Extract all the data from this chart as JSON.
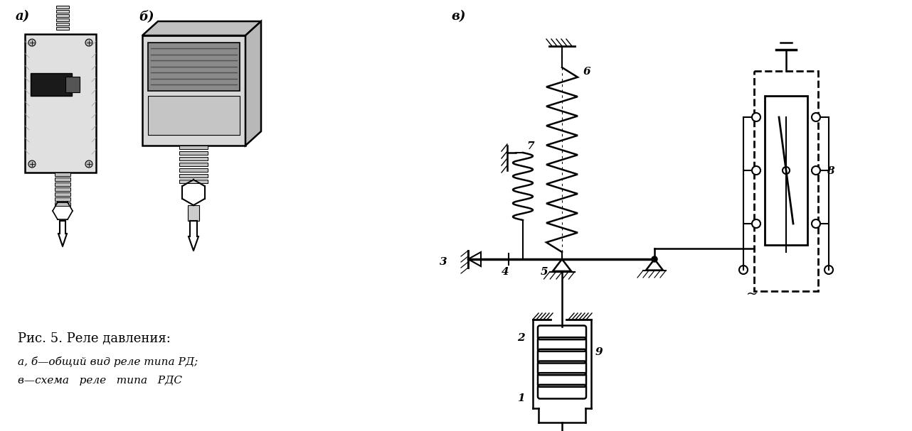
{
  "bg_color": "#ffffff",
  "fig_width": 12.82,
  "fig_height": 6.07,
  "title_line1": "Рис. 5. Реле давления:",
  "title_line2": "а, б—общий вид реле типа РД;",
  "title_line3": "в—схема   реле   типа   РДС",
  "label_a": "а)",
  "label_b": "б)",
  "label_v": "в)",
  "text_color": "#000000"
}
